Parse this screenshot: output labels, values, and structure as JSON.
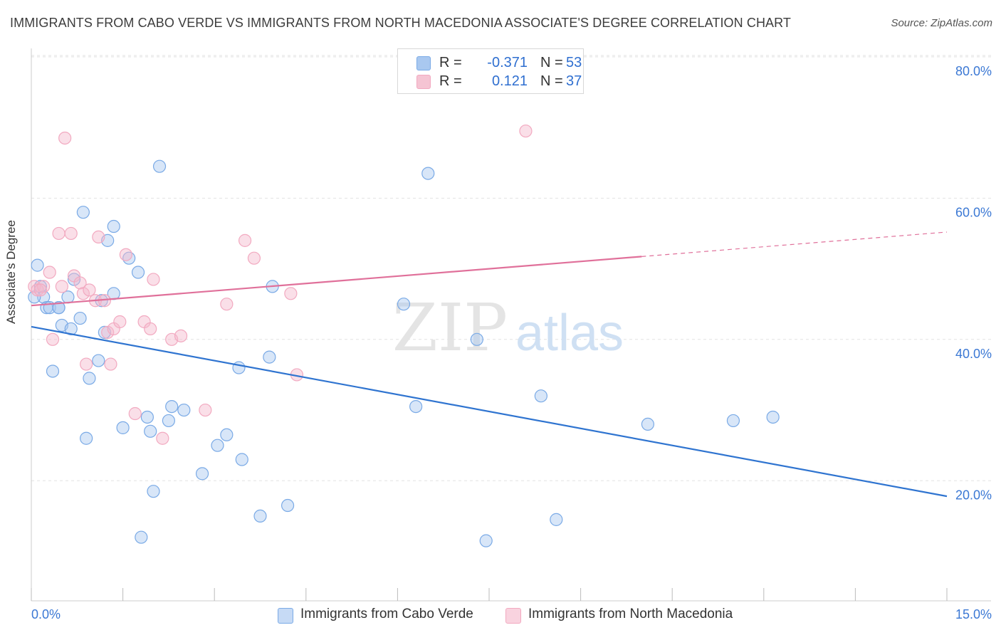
{
  "header": {
    "title": "IMMIGRANTS FROM CABO VERDE VS IMMIGRANTS FROM NORTH MACEDONIA ASSOCIATE'S DEGREE CORRELATION CHART",
    "source": "Source: ZipAtlas.com"
  },
  "watermark": {
    "zip": "ZIP",
    "atlas": "atlas"
  },
  "legend_top": {
    "rows": [
      {
        "r_label": "R =",
        "r_value": "-0.371",
        "n_label": "N =",
        "n_value": "53",
        "color": "#a9c8f0"
      },
      {
        "r_label": "R =",
        "r_value": "0.121",
        "n_label": "N =",
        "n_value": "37",
        "color": "#f5b8cb"
      }
    ]
  },
  "legend_bottom": {
    "items": [
      {
        "label": "Immigrants from Cabo Verde",
        "color": "#a9c8f0"
      },
      {
        "label": "Immigrants from North Macedonia",
        "color": "#f5b8cb"
      }
    ]
  },
  "chart_data": {
    "type": "scatter",
    "title": "IMMIGRANTS FROM CABO VERDE VS IMMIGRANTS FROM NORTH MACEDONIA ASSOCIATE'S DEGREE CORRELATION CHART",
    "xlabel": "",
    "ylabel": "Associate's Degree",
    "xlim": [
      0,
      15
    ],
    "ylim": [
      3,
      82
    ],
    "x_tick_labels": [
      "0.0%",
      "15.0%"
    ],
    "y_ticks": [
      20,
      40,
      60,
      80
    ],
    "y_tick_labels": [
      "20.0%",
      "40.0%",
      "60.0%",
      "80.0%"
    ],
    "grid": true,
    "legend_position": "top-center",
    "series": [
      {
        "name": "Immigrants from Cabo Verde",
        "color": "#7aaae6",
        "line_color": "#2f74d0",
        "trend": {
          "x": [
            0,
            15
          ],
          "y": [
            41.8,
            17.8
          ]
        },
        "points": [
          [
            0.1,
            50.5
          ],
          [
            0.15,
            47.5
          ],
          [
            0.2,
            46.0
          ],
          [
            0.25,
            44.5
          ],
          [
            0.3,
            44.5
          ],
          [
            0.35,
            35.5
          ],
          [
            0.45,
            44.5
          ],
          [
            0.45,
            44.5
          ],
          [
            0.5,
            42.0
          ],
          [
            0.6,
            46.0
          ],
          [
            0.65,
            41.5
          ],
          [
            0.7,
            48.5
          ],
          [
            0.8,
            43.0
          ],
          [
            0.85,
            58.0
          ],
          [
            0.9,
            26.0
          ],
          [
            0.95,
            34.5
          ],
          [
            1.1,
            37.0
          ],
          [
            1.15,
            45.5
          ],
          [
            1.2,
            41.0
          ],
          [
            1.25,
            54.0
          ],
          [
            1.35,
            56.0
          ],
          [
            1.35,
            46.5
          ],
          [
            1.5,
            27.5
          ],
          [
            1.6,
            51.5
          ],
          [
            1.75,
            49.5
          ],
          [
            1.8,
            12.0
          ],
          [
            1.9,
            29.0
          ],
          [
            1.95,
            27.0
          ],
          [
            2.0,
            18.5
          ],
          [
            2.1,
            64.5
          ],
          [
            2.25,
            28.5
          ],
          [
            2.3,
            30.5
          ],
          [
            2.5,
            30.0
          ],
          [
            2.8,
            21.0
          ],
          [
            3.05,
            25.0
          ],
          [
            3.2,
            26.5
          ],
          [
            3.4,
            36.0
          ],
          [
            3.45,
            23.0
          ],
          [
            3.75,
            15.0
          ],
          [
            3.9,
            37.5
          ],
          [
            3.95,
            47.5
          ],
          [
            4.2,
            16.5
          ],
          [
            6.1,
            45.0
          ],
          [
            6.3,
            30.5
          ],
          [
            6.5,
            63.5
          ],
          [
            7.3,
            40.0
          ],
          [
            7.45,
            11.5
          ],
          [
            8.35,
            32.0
          ],
          [
            8.6,
            14.5
          ],
          [
            10.1,
            28.0
          ],
          [
            11.5,
            28.5
          ],
          [
            12.15,
            29.0
          ],
          [
            0.05,
            46.0
          ]
        ]
      },
      {
        "name": "Immigrants from North Macedonia",
        "color": "#f2a9c0",
        "line_color": "#e0709a",
        "trend": {
          "x": [
            0,
            15
          ],
          "y": [
            44.8,
            55.2
          ]
        },
        "trend_solid_until": 10.0,
        "points": [
          [
            0.05,
            47.5
          ],
          [
            0.1,
            47.0
          ],
          [
            0.2,
            47.5
          ],
          [
            0.3,
            49.5
          ],
          [
            0.35,
            40.0
          ],
          [
            0.45,
            55.0
          ],
          [
            0.5,
            47.5
          ],
          [
            0.55,
            68.5
          ],
          [
            0.65,
            55.0
          ],
          [
            0.7,
            49.0
          ],
          [
            0.8,
            48.0
          ],
          [
            0.85,
            46.5
          ],
          [
            0.9,
            36.5
          ],
          [
            0.95,
            47.0
          ],
          [
            1.05,
            45.5
          ],
          [
            1.1,
            54.5
          ],
          [
            1.2,
            45.5
          ],
          [
            1.25,
            41.0
          ],
          [
            1.3,
            36.5
          ],
          [
            1.35,
            41.5
          ],
          [
            1.45,
            42.5
          ],
          [
            1.55,
            52.0
          ],
          [
            1.7,
            29.5
          ],
          [
            1.85,
            42.5
          ],
          [
            1.95,
            41.5
          ],
          [
            2.0,
            48.5
          ],
          [
            2.15,
            26.0
          ],
          [
            2.3,
            40.0
          ],
          [
            2.45,
            40.5
          ],
          [
            2.85,
            30.0
          ],
          [
            3.2,
            45.0
          ],
          [
            3.5,
            54.0
          ],
          [
            3.65,
            51.5
          ],
          [
            4.25,
            46.5
          ],
          [
            4.35,
            35.0
          ],
          [
            8.1,
            69.5
          ],
          [
            0.15,
            47.0
          ]
        ]
      }
    ]
  }
}
